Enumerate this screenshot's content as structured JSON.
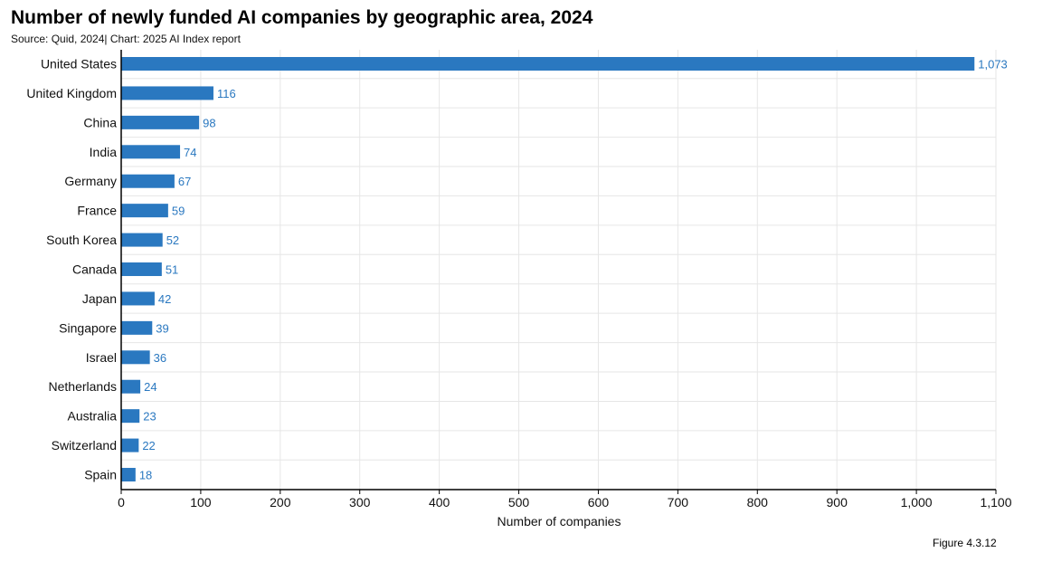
{
  "title": "Number of newly funded AI companies by geographic area, 2024",
  "subtitle": "Source: Quid, 2024| Chart: 2025 AI Index report",
  "figure_label": "Figure 4.3.12",
  "colors": {
    "bar": "#2a78c0",
    "value_label": "#2a78c0",
    "grid": "#e6e6e6",
    "axis": "#000000"
  },
  "chart_data": {
    "type": "bar",
    "orientation": "horizontal",
    "title": "Number of newly funded AI companies by geographic area, 2024",
    "xlabel": "Number of companies",
    "ylabel": "",
    "xlim": [
      0,
      1100
    ],
    "xticks": [
      0,
      100,
      200,
      300,
      400,
      500,
      600,
      700,
      800,
      900,
      1000,
      1100
    ],
    "xtick_labels": [
      "0",
      "100",
      "200",
      "300",
      "400",
      "500",
      "600",
      "700",
      "800",
      "900",
      "1,000",
      "1,100"
    ],
    "grid": true,
    "categories": [
      "United States",
      "United Kingdom",
      "China",
      "India",
      "Germany",
      "France",
      "South Korea",
      "Canada",
      "Japan",
      "Singapore",
      "Israel",
      "Netherlands",
      "Australia",
      "Switzerland",
      "Spain"
    ],
    "values": [
      1073,
      116,
      98,
      74,
      67,
      59,
      52,
      51,
      42,
      39,
      36,
      24,
      23,
      22,
      18
    ],
    "value_labels": [
      "1,073",
      "116",
      "98",
      "74",
      "67",
      "59",
      "52",
      "51",
      "42",
      "39",
      "36",
      "24",
      "23",
      "22",
      "18"
    ]
  }
}
